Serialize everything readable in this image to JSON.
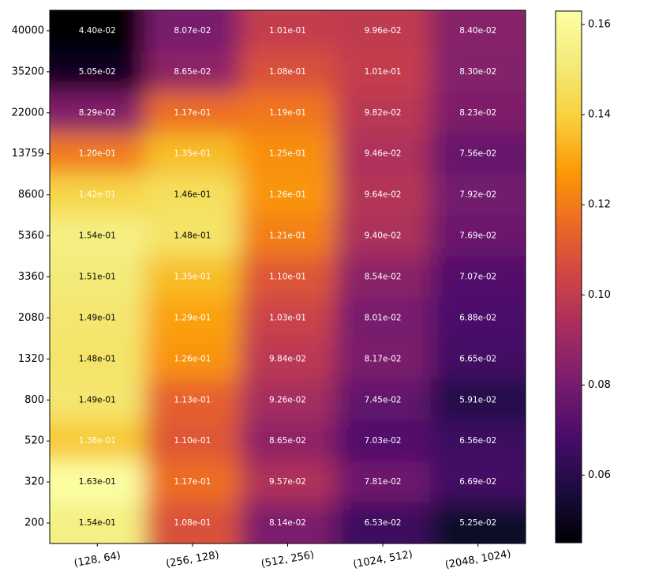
{
  "chart_data": {
    "type": "heatmap",
    "title": "",
    "xlabel": "",
    "ylabel": "",
    "x_categories": [
      "(128, 64)",
      "(256, 128)",
      "(512, 256)",
      "(1024, 512)",
      "(2048, 1024)"
    ],
    "y_categories": [
      "40000",
      "35200",
      "22000",
      "13759",
      "8600",
      "5360",
      "3360",
      "2080",
      "1320",
      "800",
      "520",
      "320",
      "200"
    ],
    "values": [
      [
        0.044,
        0.0807,
        0.101,
        0.0996,
        0.084
      ],
      [
        0.0505,
        0.0865,
        0.108,
        0.101,
        0.083
      ],
      [
        0.0829,
        0.117,
        0.119,
        0.0982,
        0.0823
      ],
      [
        0.12,
        0.135,
        0.125,
        0.0946,
        0.0756
      ],
      [
        0.142,
        0.146,
        0.126,
        0.0964,
        0.0792
      ],
      [
        0.154,
        0.148,
        0.121,
        0.094,
        0.0769
      ],
      [
        0.151,
        0.135,
        0.11,
        0.0854,
        0.0707
      ],
      [
        0.149,
        0.129,
        0.103,
        0.0801,
        0.0688
      ],
      [
        0.148,
        0.126,
        0.0984,
        0.0817,
        0.0665
      ],
      [
        0.149,
        0.113,
        0.0926,
        0.0745,
        0.0591
      ],
      [
        0.138,
        0.11,
        0.0865,
        0.0703,
        0.0656
      ],
      [
        0.163,
        0.117,
        0.0957,
        0.0781,
        0.0669
      ],
      [
        0.154,
        0.108,
        0.0814,
        0.0653,
        0.0525
      ]
    ],
    "labels": [
      [
        "4.40e-02",
        "8.07e-02",
        "1.01e-01",
        "9.96e-02",
        "8.40e-02"
      ],
      [
        "5.05e-02",
        "8.65e-02",
        "1.08e-01",
        "1.01e-01",
        "8.30e-02"
      ],
      [
        "8.29e-02",
        "1.17e-01",
        "1.19e-01",
        "9.82e-02",
        "8.23e-02"
      ],
      [
        "1.20e-01",
        "1.35e-01",
        "1.25e-01",
        "9.46e-02",
        "7.56e-02"
      ],
      [
        "1.42e-01",
        "1.46e-01",
        "1.26e-01",
        "9.64e-02",
        "7.92e-02"
      ],
      [
        "1.54e-01",
        "1.48e-01",
        "1.21e-01",
        "9.40e-02",
        "7.69e-02"
      ],
      [
        "1.51e-01",
        "1.35e-01",
        "1.10e-01",
        "8.54e-02",
        "7.07e-02"
      ],
      [
        "1.49e-01",
        "1.29e-01",
        "1.03e-01",
        "8.01e-02",
        "6.88e-02"
      ],
      [
        "1.48e-01",
        "1.26e-01",
        "9.84e-02",
        "8.17e-02",
        "6.65e-02"
      ],
      [
        "1.49e-01",
        "1.13e-01",
        "9.26e-02",
        "7.45e-02",
        "5.91e-02"
      ],
      [
        "1.38e-01",
        "1.10e-01",
        "8.65e-02",
        "7.03e-02",
        "6.56e-02"
      ],
      [
        "1.63e-01",
        "1.17e-01",
        "9.57e-02",
        "7.81e-02",
        "6.69e-02"
      ],
      [
        "1.54e-01",
        "1.08e-01",
        "8.14e-02",
        "6.53e-02",
        "5.25e-02"
      ]
    ],
    "colormap": "inferno",
    "colorbar": {
      "range": [
        0.045,
        0.163
      ],
      "ticks": [
        0.06,
        0.08,
        0.1,
        0.12,
        0.14,
        0.16
      ],
      "tick_labels": [
        "0.06",
        "0.08",
        "0.10",
        "0.12",
        "0.14",
        "0.16"
      ]
    },
    "interpolation": "bilinear",
    "grid": false
  }
}
